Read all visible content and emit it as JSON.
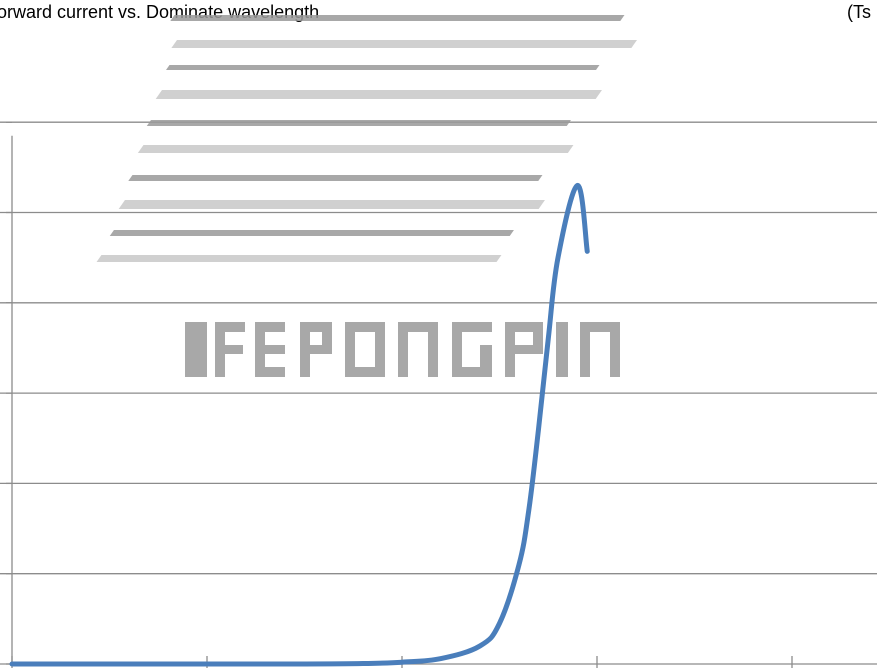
{
  "header": {
    "title": "orward current vs. Dominate wavelength",
    "condition_fragment": "(Ts"
  },
  "chart_data": {
    "type": "line",
    "title": "orward current vs. Dominate wavelength",
    "xlabel": "",
    "ylabel": "",
    "grid": true,
    "legend": "none",
    "xlim": [
      0,
      4.4
    ],
    "ylim": [
      0,
      5.8
    ],
    "x_gridlines": [
      0,
      1,
      2,
      3,
      4
    ],
    "y_gridlines": [
      0,
      1,
      2,
      3,
      4,
      5,
      6
    ],
    "series": [
      {
        "color": "#4a7ebb",
        "x": [
          0,
          1.0,
          1.5,
          1.8,
          2.0,
          2.2,
          2.4,
          2.5,
          2.6,
          2.65,
          2.7,
          2.75,
          2.8,
          2.9,
          2.95
        ],
        "y": [
          0,
          0,
          0,
          0.005,
          0.02,
          0.06,
          0.2,
          0.45,
          1.1,
          1.7,
          2.6,
          3.6,
          4.5,
          5.3,
          4.57
        ]
      }
    ]
  },
  "colors": {
    "series": "#4a7ebb",
    "grid": "#8c8c8c",
    "background": "#ffffff"
  }
}
